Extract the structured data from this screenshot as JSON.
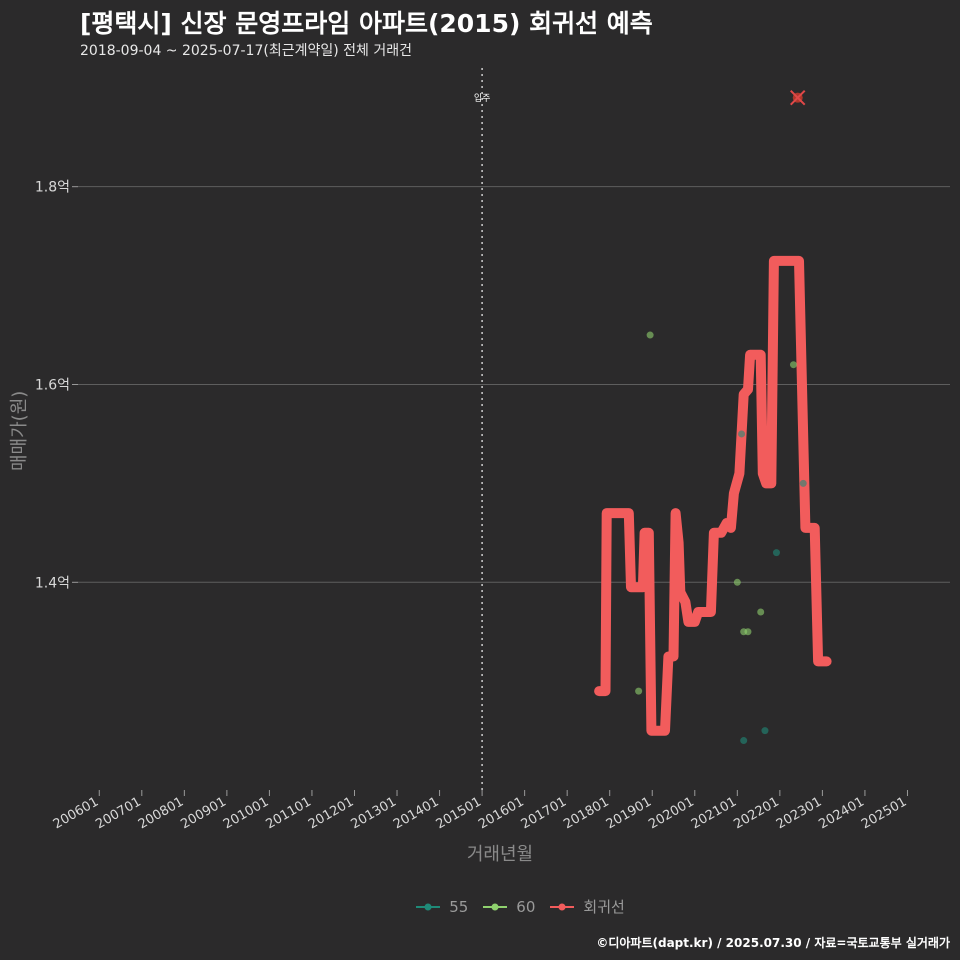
{
  "header": {
    "title": "[평택시] 신장 문영프라임 아파트(2015) 회귀선 예측",
    "subtitle": "2018-09-04 ~ 2025-07-17(최근계약일) 전체 거래건"
  },
  "footer": {
    "credit": "©디아파트(dapt.kr) / 2025.07.30 / 자료=국토교통부 실거래가"
  },
  "colors": {
    "s55": "#1f8a78",
    "s60": "#8fd16e",
    "regression": "#f25c5c",
    "grid": "#5e5e5e",
    "background": "#2b2a2b"
  },
  "chart_data": {
    "type": "scatter",
    "title": "[평택시] 신장 문영프라임 아파트(2015) 회귀선 예측",
    "xlabel": "거래년월",
    "ylabel": "매매가(원)",
    "x_unit": "year (decimal)",
    "xlim": [
      2005.5,
      2026.0
    ],
    "ylim": [
      1.19,
      1.92
    ],
    "y_ticks": [
      {
        "value": 1.4,
        "label": "1.4억"
      },
      {
        "value": 1.6,
        "label": "1.6억"
      },
      {
        "value": 1.8,
        "label": "1.8억"
      }
    ],
    "x_ticks": [
      {
        "value": 2006.0,
        "label": "200601"
      },
      {
        "value": 2007.0,
        "label": "200701"
      },
      {
        "value": 2008.0,
        "label": "200801"
      },
      {
        "value": 2009.0,
        "label": "200901"
      },
      {
        "value": 2010.0,
        "label": "201001"
      },
      {
        "value": 2011.0,
        "label": "201101"
      },
      {
        "value": 2012.0,
        "label": "201201"
      },
      {
        "value": 2013.0,
        "label": "201301"
      },
      {
        "value": 2014.0,
        "label": "201401"
      },
      {
        "value": 2015.0,
        "label": "201501"
      },
      {
        "value": 2016.0,
        "label": "201601"
      },
      {
        "value": 2017.0,
        "label": "201701"
      },
      {
        "value": 2018.0,
        "label": "201801"
      },
      {
        "value": 2019.0,
        "label": "201901"
      },
      {
        "value": 2020.0,
        "label": "202001"
      },
      {
        "value": 2021.0,
        "label": "202101"
      },
      {
        "value": 2022.0,
        "label": "202201"
      },
      {
        "value": 2023.0,
        "label": "202301"
      },
      {
        "value": 2024.0,
        "label": "202401"
      },
      {
        "value": 2025.0,
        "label": "202501"
      }
    ],
    "annotation": {
      "label": "입주",
      "x": 2015.0
    },
    "series": [
      {
        "name": "55",
        "points": [
          {
            "x": 2021.1,
            "y": 1.55
          },
          {
            "x": 2021.92,
            "y": 1.43
          },
          {
            "x": 2021.65,
            "y": 1.25
          },
          {
            "x": 2021.15,
            "y": 1.24
          },
          {
            "x": 2022.55,
            "y": 1.5
          }
        ]
      },
      {
        "name": "60",
        "points": [
          {
            "x": 2018.68,
            "y": 1.29
          },
          {
            "x": 2018.95,
            "y": 1.65
          },
          {
            "x": 2021.0,
            "y": 1.4
          },
          {
            "x": 2021.15,
            "y": 1.35
          },
          {
            "x": 2021.25,
            "y": 1.35
          },
          {
            "x": 2021.55,
            "y": 1.37
          },
          {
            "x": 2022.32,
            "y": 1.62
          }
        ]
      },
      {
        "name": "회귀선",
        "marker": {
          "x": 2022.42,
          "y": 1.89
        },
        "points": [
          {
            "x": 2017.75,
            "y": 1.29
          },
          {
            "x": 2017.9,
            "y": 1.29
          },
          {
            "x": 2017.93,
            "y": 1.47
          },
          {
            "x": 2018.25,
            "y": 1.47
          },
          {
            "x": 2018.3,
            "y": 1.47
          },
          {
            "x": 2018.45,
            "y": 1.47
          },
          {
            "x": 2018.5,
            "y": 1.395
          },
          {
            "x": 2018.78,
            "y": 1.395
          },
          {
            "x": 2018.82,
            "y": 1.45
          },
          {
            "x": 2018.92,
            "y": 1.45
          },
          {
            "x": 2018.98,
            "y": 1.25
          },
          {
            "x": 2019.3,
            "y": 1.25
          },
          {
            "x": 2019.38,
            "y": 1.325
          },
          {
            "x": 2019.5,
            "y": 1.325
          },
          {
            "x": 2019.55,
            "y": 1.47
          },
          {
            "x": 2019.62,
            "y": 1.44
          },
          {
            "x": 2019.66,
            "y": 1.39
          },
          {
            "x": 2019.78,
            "y": 1.38
          },
          {
            "x": 2019.85,
            "y": 1.36
          },
          {
            "x": 2020.0,
            "y": 1.36
          },
          {
            "x": 2020.08,
            "y": 1.37
          },
          {
            "x": 2020.38,
            "y": 1.37
          },
          {
            "x": 2020.45,
            "y": 1.45
          },
          {
            "x": 2020.62,
            "y": 1.45
          },
          {
            "x": 2020.75,
            "y": 1.46
          },
          {
            "x": 2020.85,
            "y": 1.455
          },
          {
            "x": 2020.92,
            "y": 1.49
          },
          {
            "x": 2021.05,
            "y": 1.51
          },
          {
            "x": 2021.15,
            "y": 1.59
          },
          {
            "x": 2021.25,
            "y": 1.595
          },
          {
            "x": 2021.3,
            "y": 1.63
          },
          {
            "x": 2021.55,
            "y": 1.63
          },
          {
            "x": 2021.6,
            "y": 1.51
          },
          {
            "x": 2021.68,
            "y": 1.5
          },
          {
            "x": 2021.8,
            "y": 1.5
          },
          {
            "x": 2021.86,
            "y": 1.725
          },
          {
            "x": 2022.2,
            "y": 1.725
          },
          {
            "x": 2022.25,
            "y": 1.725
          },
          {
            "x": 2022.3,
            "y": 1.725
          },
          {
            "x": 2022.45,
            "y": 1.725
          },
          {
            "x": 2022.6,
            "y": 1.455
          },
          {
            "x": 2022.82,
            "y": 1.455
          },
          {
            "x": 2022.9,
            "y": 1.32
          },
          {
            "x": 2023.1,
            "y": 1.32
          }
        ]
      }
    ],
    "legend": [
      "55",
      "60",
      "회귀선"
    ],
    "legend_position": "bottom"
  }
}
